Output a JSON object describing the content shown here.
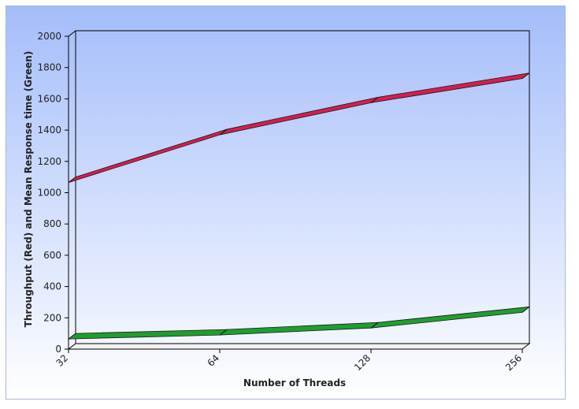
{
  "colors": {
    "background_top": "#a4bdfa",
    "background_bottom": "#ffffff",
    "throughput_line": "#d21f4e",
    "response_line": "#1f9e2e"
  },
  "chart_data": {
    "type": "line",
    "title": "",
    "xlabel": "Number of Threads",
    "ylabel": "Throughput (Red) and Mean Response time (Green)",
    "categories": [
      "32",
      "64",
      "128",
      "256"
    ],
    "ylim": [
      0,
      2000
    ],
    "yticks": [
      0,
      200,
      400,
      600,
      800,
      1000,
      1200,
      1400,
      1600,
      1800,
      2000
    ],
    "grid": false,
    "legend": "none",
    "series": [
      {
        "values": [
          1065,
          1370,
          1575,
          1730
        ],
        "color": "#d21f4e"
      },
      {
        "values": [
          65,
          90,
          135,
          235
        ],
        "color": "#1f9e2e"
      }
    ]
  }
}
